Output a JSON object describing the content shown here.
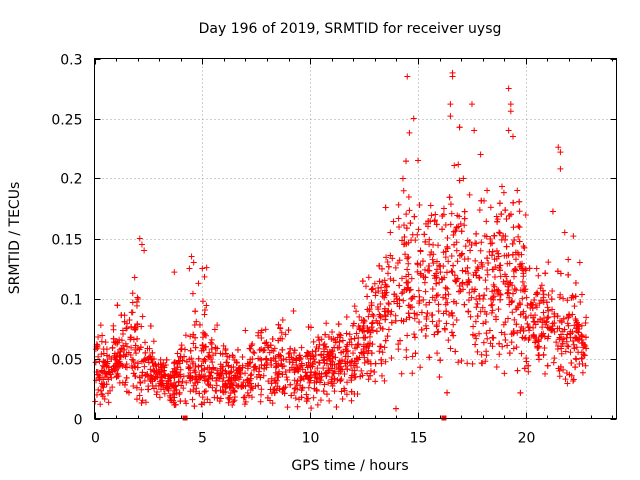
{
  "chart_data": {
    "type": "scatter",
    "title": "Day 196 of 2019, SRMTID for receiver uysg",
    "xlabel": "GPS time / hours",
    "ylabel": "SRMTID / TECUs",
    "xlim": [
      0,
      24.2
    ],
    "ylim": [
      0,
      0.3
    ],
    "x_ticks": [
      0,
      5,
      10,
      15,
      20
    ],
    "x_tick_labels": [
      "0",
      "5",
      "10",
      "15",
      "20"
    ],
    "y_ticks": [
      0,
      0.05,
      0.1,
      0.15,
      0.2,
      0.25,
      0.3
    ],
    "y_tick_labels": [
      "0",
      "0.05",
      "0.1",
      "0.15",
      "0.2",
      "0.25",
      "0.3"
    ],
    "grid": true,
    "marker": "plus",
    "series_color": "#ff0000",
    "baseline_markers_x": [
      4.2,
      16.2
    ],
    "series": [
      {
        "name": "SRMTID",
        "profile_hours": [
          0,
          0.5,
          1,
          1.5,
          2,
          2.5,
          3,
          3.5,
          4,
          4.5,
          5,
          5.5,
          6,
          6.5,
          7,
          7.5,
          8,
          8.5,
          9,
          9.5,
          10,
          10.5,
          11,
          11.5,
          12,
          12.5,
          13,
          13.5,
          14,
          14.5,
          15,
          15.5,
          16,
          16.5,
          17,
          17.5,
          18,
          18.5,
          19,
          19.5,
          20,
          20.5,
          21,
          21.5,
          22,
          22.5,
          22.8
        ],
        "profile_median": [
          0.045,
          0.035,
          0.05,
          0.06,
          0.055,
          0.04,
          0.035,
          0.03,
          0.035,
          0.045,
          0.05,
          0.04,
          0.035,
          0.035,
          0.035,
          0.04,
          0.045,
          0.045,
          0.04,
          0.04,
          0.04,
          0.045,
          0.045,
          0.045,
          0.05,
          0.065,
          0.085,
          0.1,
          0.11,
          0.12,
          0.115,
          0.11,
          0.1,
          0.12,
          0.13,
          0.12,
          0.11,
          0.1,
          0.12,
          0.11,
          0.09,
          0.09,
          0.08,
          0.075,
          0.07,
          0.065,
          0.06
        ],
        "profile_spread": [
          0.02,
          0.015,
          0.02,
          0.025,
          0.035,
          0.015,
          0.012,
          0.012,
          0.02,
          0.025,
          0.03,
          0.018,
          0.015,
          0.015,
          0.015,
          0.018,
          0.02,
          0.02,
          0.018,
          0.018,
          0.02,
          0.02,
          0.02,
          0.02,
          0.02,
          0.025,
          0.03,
          0.035,
          0.045,
          0.05,
          0.05,
          0.045,
          0.04,
          0.05,
          0.05,
          0.05,
          0.045,
          0.04,
          0.05,
          0.045,
          0.035,
          0.03,
          0.03,
          0.03,
          0.03,
          0.025,
          0.02
        ],
        "point_count": 2600,
        "outliers": [
          {
            "x": 14.5,
            "y": 0.285
          },
          {
            "x": 14.8,
            "y": 0.25
          },
          {
            "x": 14.6,
            "y": 0.238
          },
          {
            "x": 15.0,
            "y": 0.215
          },
          {
            "x": 16.6,
            "y": 0.288
          },
          {
            "x": 16.6,
            "y": 0.285
          },
          {
            "x": 16.5,
            "y": 0.262
          },
          {
            "x": 16.5,
            "y": 0.252
          },
          {
            "x": 17.5,
            "y": 0.262
          },
          {
            "x": 17.6,
            "y": 0.24
          },
          {
            "x": 19.2,
            "y": 0.275
          },
          {
            "x": 19.3,
            "y": 0.262
          },
          {
            "x": 19.3,
            "y": 0.256
          },
          {
            "x": 19.2,
            "y": 0.24
          },
          {
            "x": 19.4,
            "y": 0.235
          },
          {
            "x": 21.5,
            "y": 0.226
          },
          {
            "x": 21.6,
            "y": 0.222
          },
          {
            "x": 21.6,
            "y": 0.208
          },
          {
            "x": 2.1,
            "y": 0.15
          },
          {
            "x": 2.2,
            "y": 0.145
          },
          {
            "x": 2.3,
            "y": 0.14
          },
          {
            "x": 4.4,
            "y": 0.125
          },
          {
            "x": 4.5,
            "y": 0.135
          },
          {
            "x": 4.6,
            "y": 0.13
          },
          {
            "x": 5.0,
            "y": 0.125
          },
          {
            "x": 5.1,
            "y": 0.118
          },
          {
            "x": 3.7,
            "y": 0.122
          },
          {
            "x": 15.8,
            "y": 0.17
          },
          {
            "x": 16.2,
            "y": 0.175
          },
          {
            "x": 17.1,
            "y": 0.2
          },
          {
            "x": 17.9,
            "y": 0.22
          },
          {
            "x": 18.2,
            "y": 0.19
          },
          {
            "x": 19.6,
            "y": 0.19
          },
          {
            "x": 14.3,
            "y": 0.2
          },
          {
            "x": 14.1,
            "y": 0.178
          },
          {
            "x": 21.8,
            "y": 0.155
          },
          {
            "x": 22.2,
            "y": 0.152
          },
          {
            "x": 22.5,
            "y": 0.13
          },
          {
            "x": 20.5,
            "y": 0.125
          }
        ]
      }
    ]
  }
}
